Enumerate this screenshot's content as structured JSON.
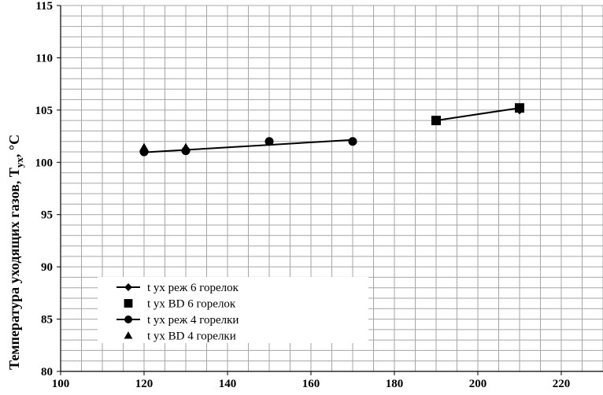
{
  "chart_data": {
    "type": "scatter",
    "title": "",
    "xlabel": "",
    "ylabel_main": "Температура уходящих газов, T",
    "ylabel_sub": "ух",
    "ylabel_suffix": ", °C",
    "xlim": [
      100,
      230
    ],
    "ylim": [
      80,
      115
    ],
    "x_ticks": [
      100,
      120,
      140,
      160,
      180,
      200,
      220
    ],
    "y_ticks": [
      80,
      85,
      90,
      95,
      100,
      105,
      110,
      115
    ],
    "grid": true,
    "legend_placement": "bottom-left",
    "series": [
      {
        "name": "t ух реж 6 горелок",
        "marker": "diamond",
        "line": true,
        "x": [
          190,
          210
        ],
        "y": [
          104.0,
          105.0
        ]
      },
      {
        "name": "t ух ВD 6 горелок",
        "marker": "square",
        "line": false,
        "x": [
          190,
          210
        ],
        "y": [
          104.0,
          105.2
        ]
      },
      {
        "name": "t ух реж 4 горелки",
        "marker": "circle",
        "line": true,
        "x": [
          120,
          130,
          150,
          170
        ],
        "y": [
          101.0,
          101.1,
          102.0,
          102.0
        ]
      },
      {
        "name": "t ух ВD 4 горелки",
        "marker": "triangle",
        "line": false,
        "x": [
          120,
          130
        ],
        "y": [
          101.4,
          101.4
        ]
      }
    ],
    "trendlines": [
      {
        "x": [
          120,
          170
        ],
        "y": [
          100.95,
          102.15
        ]
      },
      {
        "x": [
          190,
          210
        ],
        "y": [
          104.0,
          105.2
        ]
      }
    ]
  }
}
